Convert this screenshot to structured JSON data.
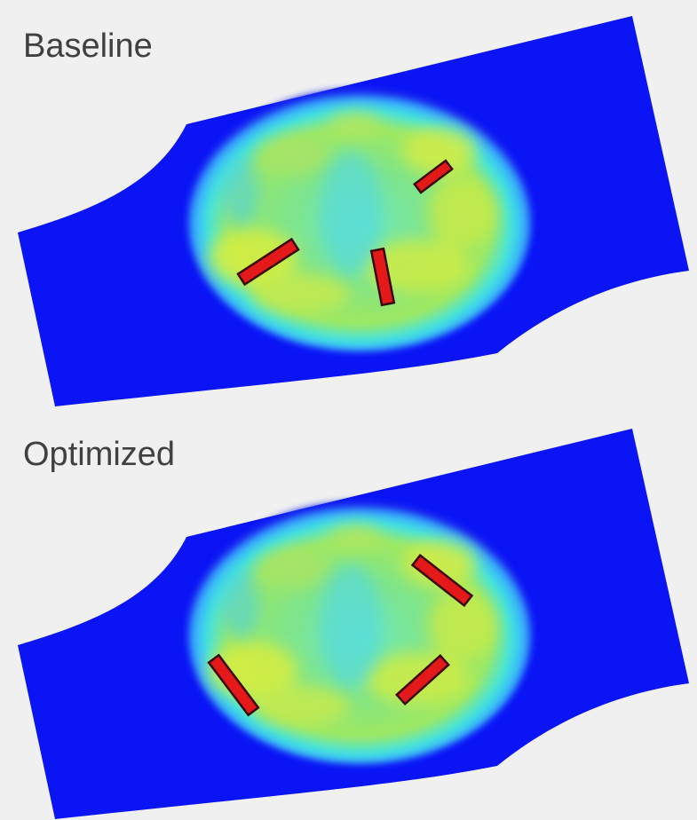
{
  "panels": [
    {
      "label": "Baseline"
    },
    {
      "label": "Optimized"
    }
  ]
}
